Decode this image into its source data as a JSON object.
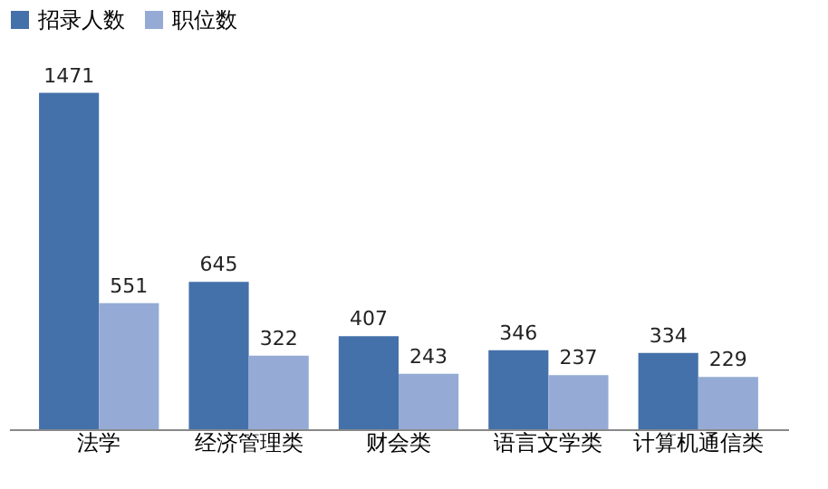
{
  "chart_data": {
    "type": "bar",
    "categories": [
      "法学",
      "经济管理类",
      "财会类",
      "语言文学类",
      "计算机通信类"
    ],
    "series": [
      {
        "name": "招录人数",
        "color": "#4471a9",
        "values": [
          1471,
          645,
          407,
          346,
          334
        ]
      },
      {
        "name": "职位数",
        "color": "#95abd5",
        "values": [
          551,
          322,
          243,
          237,
          229
        ]
      }
    ],
    "data_labels": true,
    "legend": "top",
    "grid": false,
    "tick_labels": "x"
  }
}
